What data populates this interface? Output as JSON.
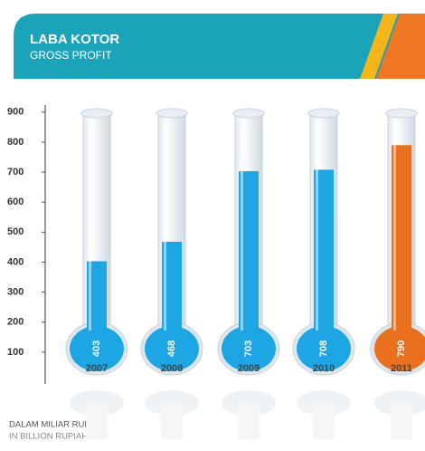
{
  "chart_data": {
    "type": "thermometer",
    "title": "LABA KOTOR",
    "subtitle": "GROSS PROFIT",
    "categories": [
      "2007",
      "2008",
      "2009",
      "2010",
      "2011"
    ],
    "values": [
      403,
      468,
      703,
      708,
      790
    ],
    "colors": [
      "#1ea6e4",
      "#1ea6e4",
      "#1ea6e4",
      "#1ea6e4",
      "#e8701f"
    ],
    "ylim": [
      0,
      900
    ],
    "yticks": [
      100,
      200,
      300,
      400,
      500,
      600,
      700,
      800,
      900
    ],
    "note": "DALAM MILIAR RUPIAH",
    "note_en": "IN BILLION RUPIAH"
  }
}
